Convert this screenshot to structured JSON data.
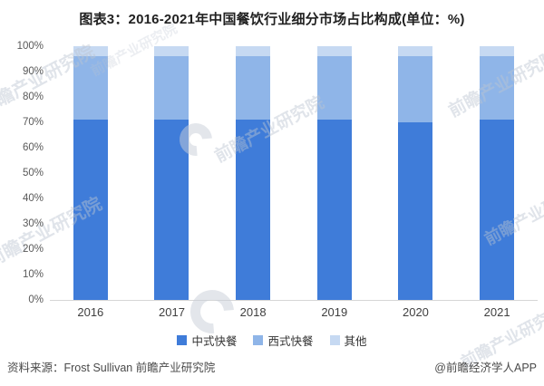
{
  "title": "图表3：2016-2021年中国餐饮行业细分市场占比构成(单位：%)",
  "chart_data": {
    "type": "bar",
    "stacked": true,
    "title": "图表3：2016-2021年中国餐饮行业细分市场占比构成(单位：%)",
    "unit": "%",
    "categories": [
      "2016",
      "2017",
      "2018",
      "2019",
      "2020",
      "2021"
    ],
    "series": [
      {
        "name": "中式快餐",
        "color": "#3F7CD9",
        "values": [
          71,
          71,
          71,
          71,
          70,
          71
        ]
      },
      {
        "name": "西式快餐",
        "color": "#8FB5E8",
        "values": [
          25,
          25,
          25,
          25,
          26,
          25
        ]
      },
      {
        "name": "其他",
        "color": "#C6D9F2",
        "values": [
          4,
          4,
          4,
          4,
          4,
          4
        ]
      }
    ],
    "ylim": [
      0,
      100
    ],
    "yticks": [
      "100%",
      "90%",
      "80%",
      "70%",
      "60%",
      "50%",
      "40%",
      "30%",
      "20%",
      "10%",
      "0%"
    ],
    "grid": false,
    "legend_position": "bottom"
  },
  "footer": {
    "source": "资料来源：Frost Sullivan 前瞻产业研究院",
    "credit": "@前瞻经济学人APP"
  },
  "watermark": {
    "text": "前瞻产业研究院"
  },
  "colors": {
    "bar_chinese": "#3F7CD9",
    "bar_western": "#8FB5E8",
    "bar_other": "#C6D9F2",
    "axis_text": "#595959",
    "category_text": "#3F3F3F",
    "legend_text": "#333333",
    "footer_text": "#4A4A4A",
    "axis_line": "#D6D6D6",
    "title_text": "#212121",
    "watermark": "#BCC5D1"
  }
}
